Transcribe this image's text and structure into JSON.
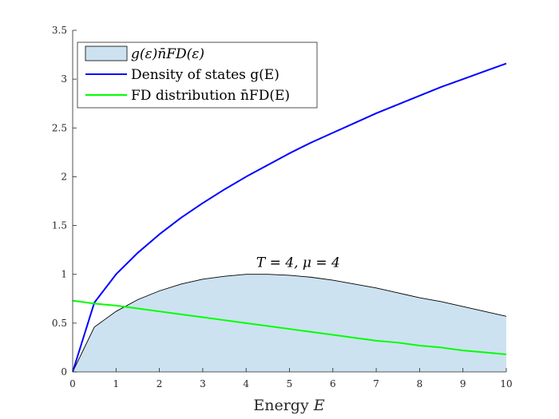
{
  "chart_data": {
    "type": "area",
    "xlabel": "Energy",
    "xlabel_var": "E",
    "ylabel": "",
    "xlim": [
      0,
      10
    ],
    "ylim": [
      0,
      3.5
    ],
    "x_ticks": [
      0,
      1,
      2,
      3,
      4,
      5,
      6,
      7,
      8,
      9,
      10
    ],
    "y_ticks": [
      0,
      0.5,
      1,
      1.5,
      2,
      2.5,
      3,
      3.5
    ],
    "grid": false,
    "legend_position": "top-left",
    "annotation": {
      "T": "T = 4,",
      "mu": "μ = 4",
      "x": 5.2,
      "y": 1.06
    },
    "x": [
      0,
      0.5,
      1,
      1.5,
      2,
      2.5,
      3,
      3.5,
      4,
      4.5,
      5,
      5.5,
      6,
      6.5,
      7,
      7.5,
      8,
      8.5,
      9,
      9.5,
      10
    ],
    "series": [
      {
        "name": "g(ε)n̄FD(ε)",
        "kind": "area",
        "color": "#cce2f0",
        "edge": "#000000",
        "values": [
          0,
          0.46,
          0.62,
          0.74,
          0.83,
          0.9,
          0.95,
          0.98,
          1.0,
          1.0,
          0.99,
          0.97,
          0.94,
          0.9,
          0.86,
          0.81,
          0.76,
          0.72,
          0.67,
          0.62,
          0.57
        ]
      },
      {
        "name": "Density of states g(E)",
        "kind": "line",
        "color": "#0000ff",
        "values": [
          0,
          0.71,
          1.0,
          1.22,
          1.41,
          1.58,
          1.73,
          1.87,
          2.0,
          2.12,
          2.24,
          2.35,
          2.45,
          2.55,
          2.65,
          2.74,
          2.83,
          2.92,
          3.0,
          3.08,
          3.16
        ]
      },
      {
        "name": "FD distribution n̄FD(E)",
        "kind": "line",
        "color": "#00ff00",
        "values": [
          0.73,
          0.7,
          0.68,
          0.65,
          0.62,
          0.59,
          0.56,
          0.53,
          0.5,
          0.47,
          0.44,
          0.41,
          0.38,
          0.35,
          0.32,
          0.3,
          0.27,
          0.25,
          0.22,
          0.2,
          0.18
        ]
      }
    ]
  }
}
